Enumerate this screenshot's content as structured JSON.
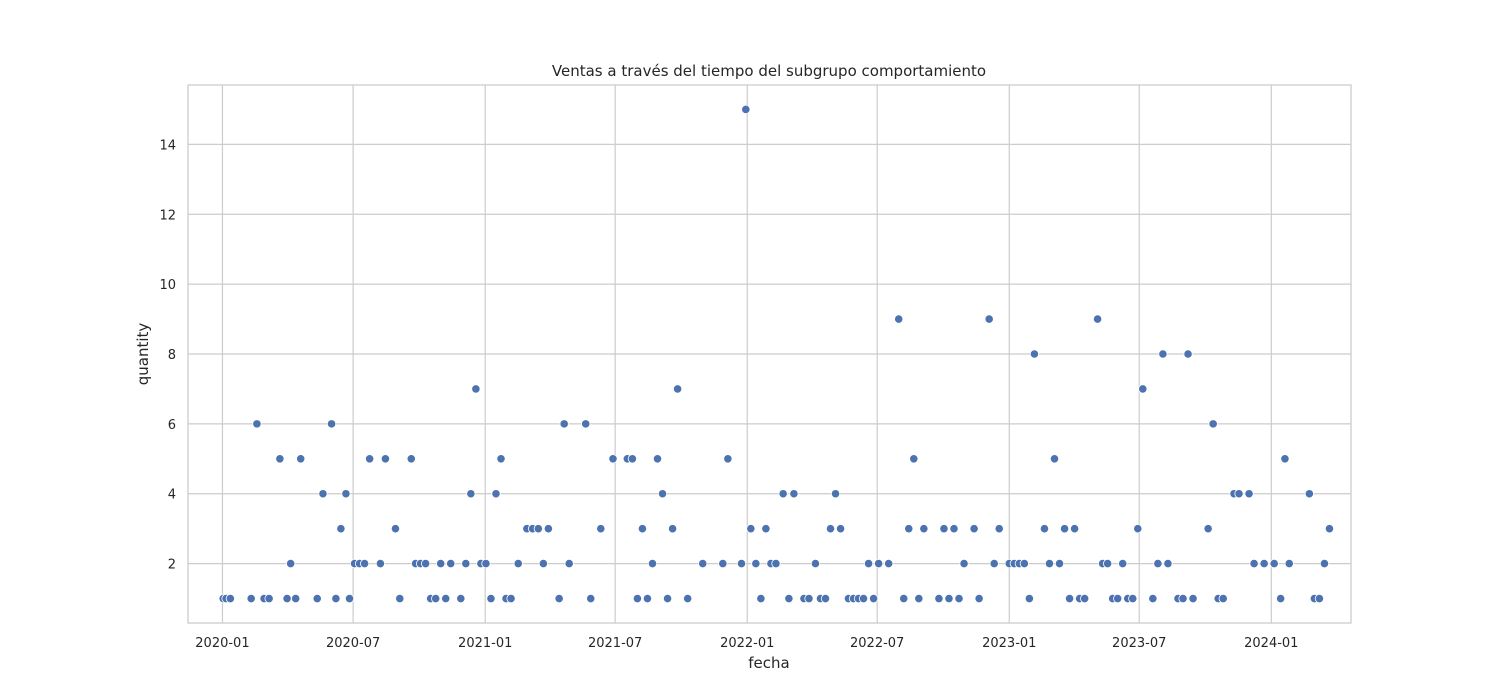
{
  "chart_data": {
    "type": "scatter",
    "title": "Ventas a través del tiempo del subgrupo comportamiento",
    "xlabel": "fecha",
    "ylabel": "quantity",
    "x_ticks": [
      "2020-01",
      "2020-07",
      "2021-01",
      "2021-07",
      "2022-01",
      "2022-07",
      "2023-01",
      "2023-07",
      "2024-01"
    ],
    "y_ticks": [
      2,
      4,
      6,
      8,
      10,
      12,
      14
    ],
    "xlim": [
      "2019-11-14",
      "2024-04-21"
    ],
    "ylim": [
      0.3,
      15.7
    ],
    "grid": true,
    "point_color": "#4c72b0",
    "points": [
      [
        "2020-01-02",
        1
      ],
      [
        "2020-01-06",
        1
      ],
      [
        "2020-01-12",
        1
      ],
      [
        "2020-02-10",
        1
      ],
      [
        "2020-02-18",
        6
      ],
      [
        "2020-02-28",
        1
      ],
      [
        "2020-03-06",
        1
      ],
      [
        "2020-03-21",
        5
      ],
      [
        "2020-03-31",
        1
      ],
      [
        "2020-04-05",
        2
      ],
      [
        "2020-04-12",
        1
      ],
      [
        "2020-04-19",
        5
      ],
      [
        "2020-05-12",
        1
      ],
      [
        "2020-05-20",
        4
      ],
      [
        "2020-06-01",
        6
      ],
      [
        "2020-06-07",
        1
      ],
      [
        "2020-06-14",
        3
      ],
      [
        "2020-06-21",
        4
      ],
      [
        "2020-06-26",
        1
      ],
      [
        "2020-07-03",
        2
      ],
      [
        "2020-07-10",
        2
      ],
      [
        "2020-07-17",
        2
      ],
      [
        "2020-07-24",
        5
      ],
      [
        "2020-08-08",
        2
      ],
      [
        "2020-08-15",
        5
      ],
      [
        "2020-08-29",
        3
      ],
      [
        "2020-09-04",
        1
      ],
      [
        "2020-09-20",
        5
      ],
      [
        "2020-09-26",
        2
      ],
      [
        "2020-10-03",
        2
      ],
      [
        "2020-10-10",
        2
      ],
      [
        "2020-10-17",
        1
      ],
      [
        "2020-10-24",
        1
      ],
      [
        "2020-10-31",
        2
      ],
      [
        "2020-11-07",
        1
      ],
      [
        "2020-11-14",
        2
      ],
      [
        "2020-11-28",
        1
      ],
      [
        "2020-12-05",
        2
      ],
      [
        "2020-12-12",
        4
      ],
      [
        "2020-12-19",
        7
      ],
      [
        "2020-12-26",
        2
      ],
      [
        "2021-01-02",
        2
      ],
      [
        "2021-01-09",
        1
      ],
      [
        "2021-01-16",
        4
      ],
      [
        "2021-01-23",
        5
      ],
      [
        "2021-01-30",
        1
      ],
      [
        "2021-02-06",
        1
      ],
      [
        "2021-02-16",
        2
      ],
      [
        "2021-02-28",
        3
      ],
      [
        "2021-03-08",
        3
      ],
      [
        "2021-03-16",
        3
      ],
      [
        "2021-03-23",
        2
      ],
      [
        "2021-03-30",
        3
      ],
      [
        "2021-04-14",
        1
      ],
      [
        "2021-04-21",
        6
      ],
      [
        "2021-04-28",
        2
      ],
      [
        "2021-05-21",
        6
      ],
      [
        "2021-05-28",
        1
      ],
      [
        "2021-06-11",
        3
      ],
      [
        "2021-06-28",
        5
      ],
      [
        "2021-07-18",
        5
      ],
      [
        "2021-07-25",
        5
      ],
      [
        "2021-08-01",
        1
      ],
      [
        "2021-08-08",
        3
      ],
      [
        "2021-08-15",
        1
      ],
      [
        "2021-08-22",
        2
      ],
      [
        "2021-08-29",
        5
      ],
      [
        "2021-09-05",
        4
      ],
      [
        "2021-09-12",
        1
      ],
      [
        "2021-09-19",
        3
      ],
      [
        "2021-09-26",
        7
      ],
      [
        "2021-10-10",
        1
      ],
      [
        "2021-10-31",
        2
      ],
      [
        "2021-11-28",
        2
      ],
      [
        "2021-12-05",
        5
      ],
      [
        "2021-12-24",
        2
      ],
      [
        "2021-12-30",
        15
      ],
      [
        "2022-01-06",
        3
      ],
      [
        "2022-01-13",
        2
      ],
      [
        "2022-01-20",
        1
      ],
      [
        "2022-01-27",
        3
      ],
      [
        "2022-02-03",
        2
      ],
      [
        "2022-02-10",
        2
      ],
      [
        "2022-02-20",
        4
      ],
      [
        "2022-02-28",
        1
      ],
      [
        "2022-03-07",
        4
      ],
      [
        "2022-03-21",
        1
      ],
      [
        "2022-03-28",
        1
      ],
      [
        "2022-04-06",
        2
      ],
      [
        "2022-04-13",
        1
      ],
      [
        "2022-04-20",
        1
      ],
      [
        "2022-04-27",
        3
      ],
      [
        "2022-05-04",
        4
      ],
      [
        "2022-05-11",
        3
      ],
      [
        "2022-05-22",
        1
      ],
      [
        "2022-05-29",
        1
      ],
      [
        "2022-06-05",
        1
      ],
      [
        "2022-06-12",
        1
      ],
      [
        "2022-06-19",
        2
      ],
      [
        "2022-06-26",
        1
      ],
      [
        "2022-07-03",
        2
      ],
      [
        "2022-07-17",
        2
      ],
      [
        "2022-07-31",
        9
      ],
      [
        "2022-08-07",
        1
      ],
      [
        "2022-08-14",
        3
      ],
      [
        "2022-08-21",
        5
      ],
      [
        "2022-08-28",
        1
      ],
      [
        "2022-09-04",
        3
      ],
      [
        "2022-09-25",
        1
      ],
      [
        "2022-10-02",
        3
      ],
      [
        "2022-10-09",
        1
      ],
      [
        "2022-10-16",
        3
      ],
      [
        "2022-10-23",
        1
      ],
      [
        "2022-10-30",
        2
      ],
      [
        "2022-11-13",
        3
      ],
      [
        "2022-11-20",
        1
      ],
      [
        "2022-12-04",
        9
      ],
      [
        "2022-12-11",
        2
      ],
      [
        "2022-12-18",
        3
      ],
      [
        "2023-01-01",
        2
      ],
      [
        "2023-01-08",
        2
      ],
      [
        "2023-01-15",
        2
      ],
      [
        "2023-01-22",
        2
      ],
      [
        "2023-01-29",
        1
      ],
      [
        "2023-02-05",
        8
      ],
      [
        "2023-02-19",
        3
      ],
      [
        "2023-02-26",
        2
      ],
      [
        "2023-03-05",
        5
      ],
      [
        "2023-03-12",
        2
      ],
      [
        "2023-03-19",
        3
      ],
      [
        "2023-03-26",
        1
      ],
      [
        "2023-04-02",
        3
      ],
      [
        "2023-04-09",
        1
      ],
      [
        "2023-04-16",
        1
      ],
      [
        "2023-05-04",
        9
      ],
      [
        "2023-05-11",
        2
      ],
      [
        "2023-05-18",
        2
      ],
      [
        "2023-05-25",
        1
      ],
      [
        "2023-06-01",
        1
      ],
      [
        "2023-06-08",
        2
      ],
      [
        "2023-06-15",
        1
      ],
      [
        "2023-06-22",
        1
      ],
      [
        "2023-06-29",
        3
      ],
      [
        "2023-07-06",
        7
      ],
      [
        "2023-07-20",
        1
      ],
      [
        "2023-07-27",
        2
      ],
      [
        "2023-08-03",
        8
      ],
      [
        "2023-08-10",
        2
      ],
      [
        "2023-08-24",
        1
      ],
      [
        "2023-08-31",
        1
      ],
      [
        "2023-09-07",
        8
      ],
      [
        "2023-09-14",
        1
      ],
      [
        "2023-10-05",
        3
      ],
      [
        "2023-10-12",
        6
      ],
      [
        "2023-10-19",
        1
      ],
      [
        "2023-10-26",
        1
      ],
      [
        "2023-11-10",
        4
      ],
      [
        "2023-11-17",
        4
      ],
      [
        "2023-12-01",
        4
      ],
      [
        "2023-12-08",
        2
      ],
      [
        "2023-12-22",
        2
      ],
      [
        "2024-01-05",
        2
      ],
      [
        "2024-01-14",
        1
      ],
      [
        "2024-01-20",
        5
      ],
      [
        "2024-01-26",
        2
      ],
      [
        "2024-02-23",
        4
      ],
      [
        "2024-03-01",
        1
      ],
      [
        "2024-03-08",
        1
      ],
      [
        "2024-03-15",
        2
      ],
      [
        "2024-03-22",
        3
      ]
    ]
  }
}
